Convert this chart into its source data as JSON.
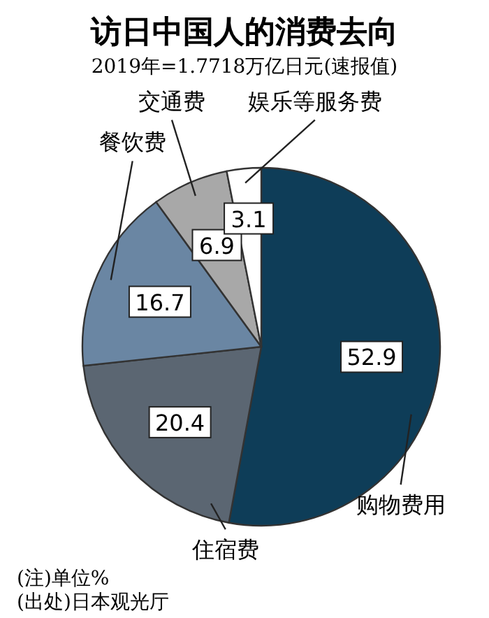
{
  "chart_data": {
    "type": "pie",
    "title": "访日中国人的消费去向",
    "subtitle": "2019年=1.7718万亿日元(速报值)",
    "categories": [
      "购物费用",
      "住宿费",
      "餐饮费",
      "交通费",
      "娱乐等服务费"
    ],
    "values": [
      52.9,
      20.4,
      16.7,
      6.9,
      3.1
    ],
    "colors": [
      "#0e3d58",
      "#5b6672",
      "#6a86a3",
      "#a8a8a8",
      "#ffffff"
    ],
    "data_labels": true,
    "legend": false,
    "annotations": [
      "(注)单位%",
      "(出处)日本观光厅"
    ]
  }
}
